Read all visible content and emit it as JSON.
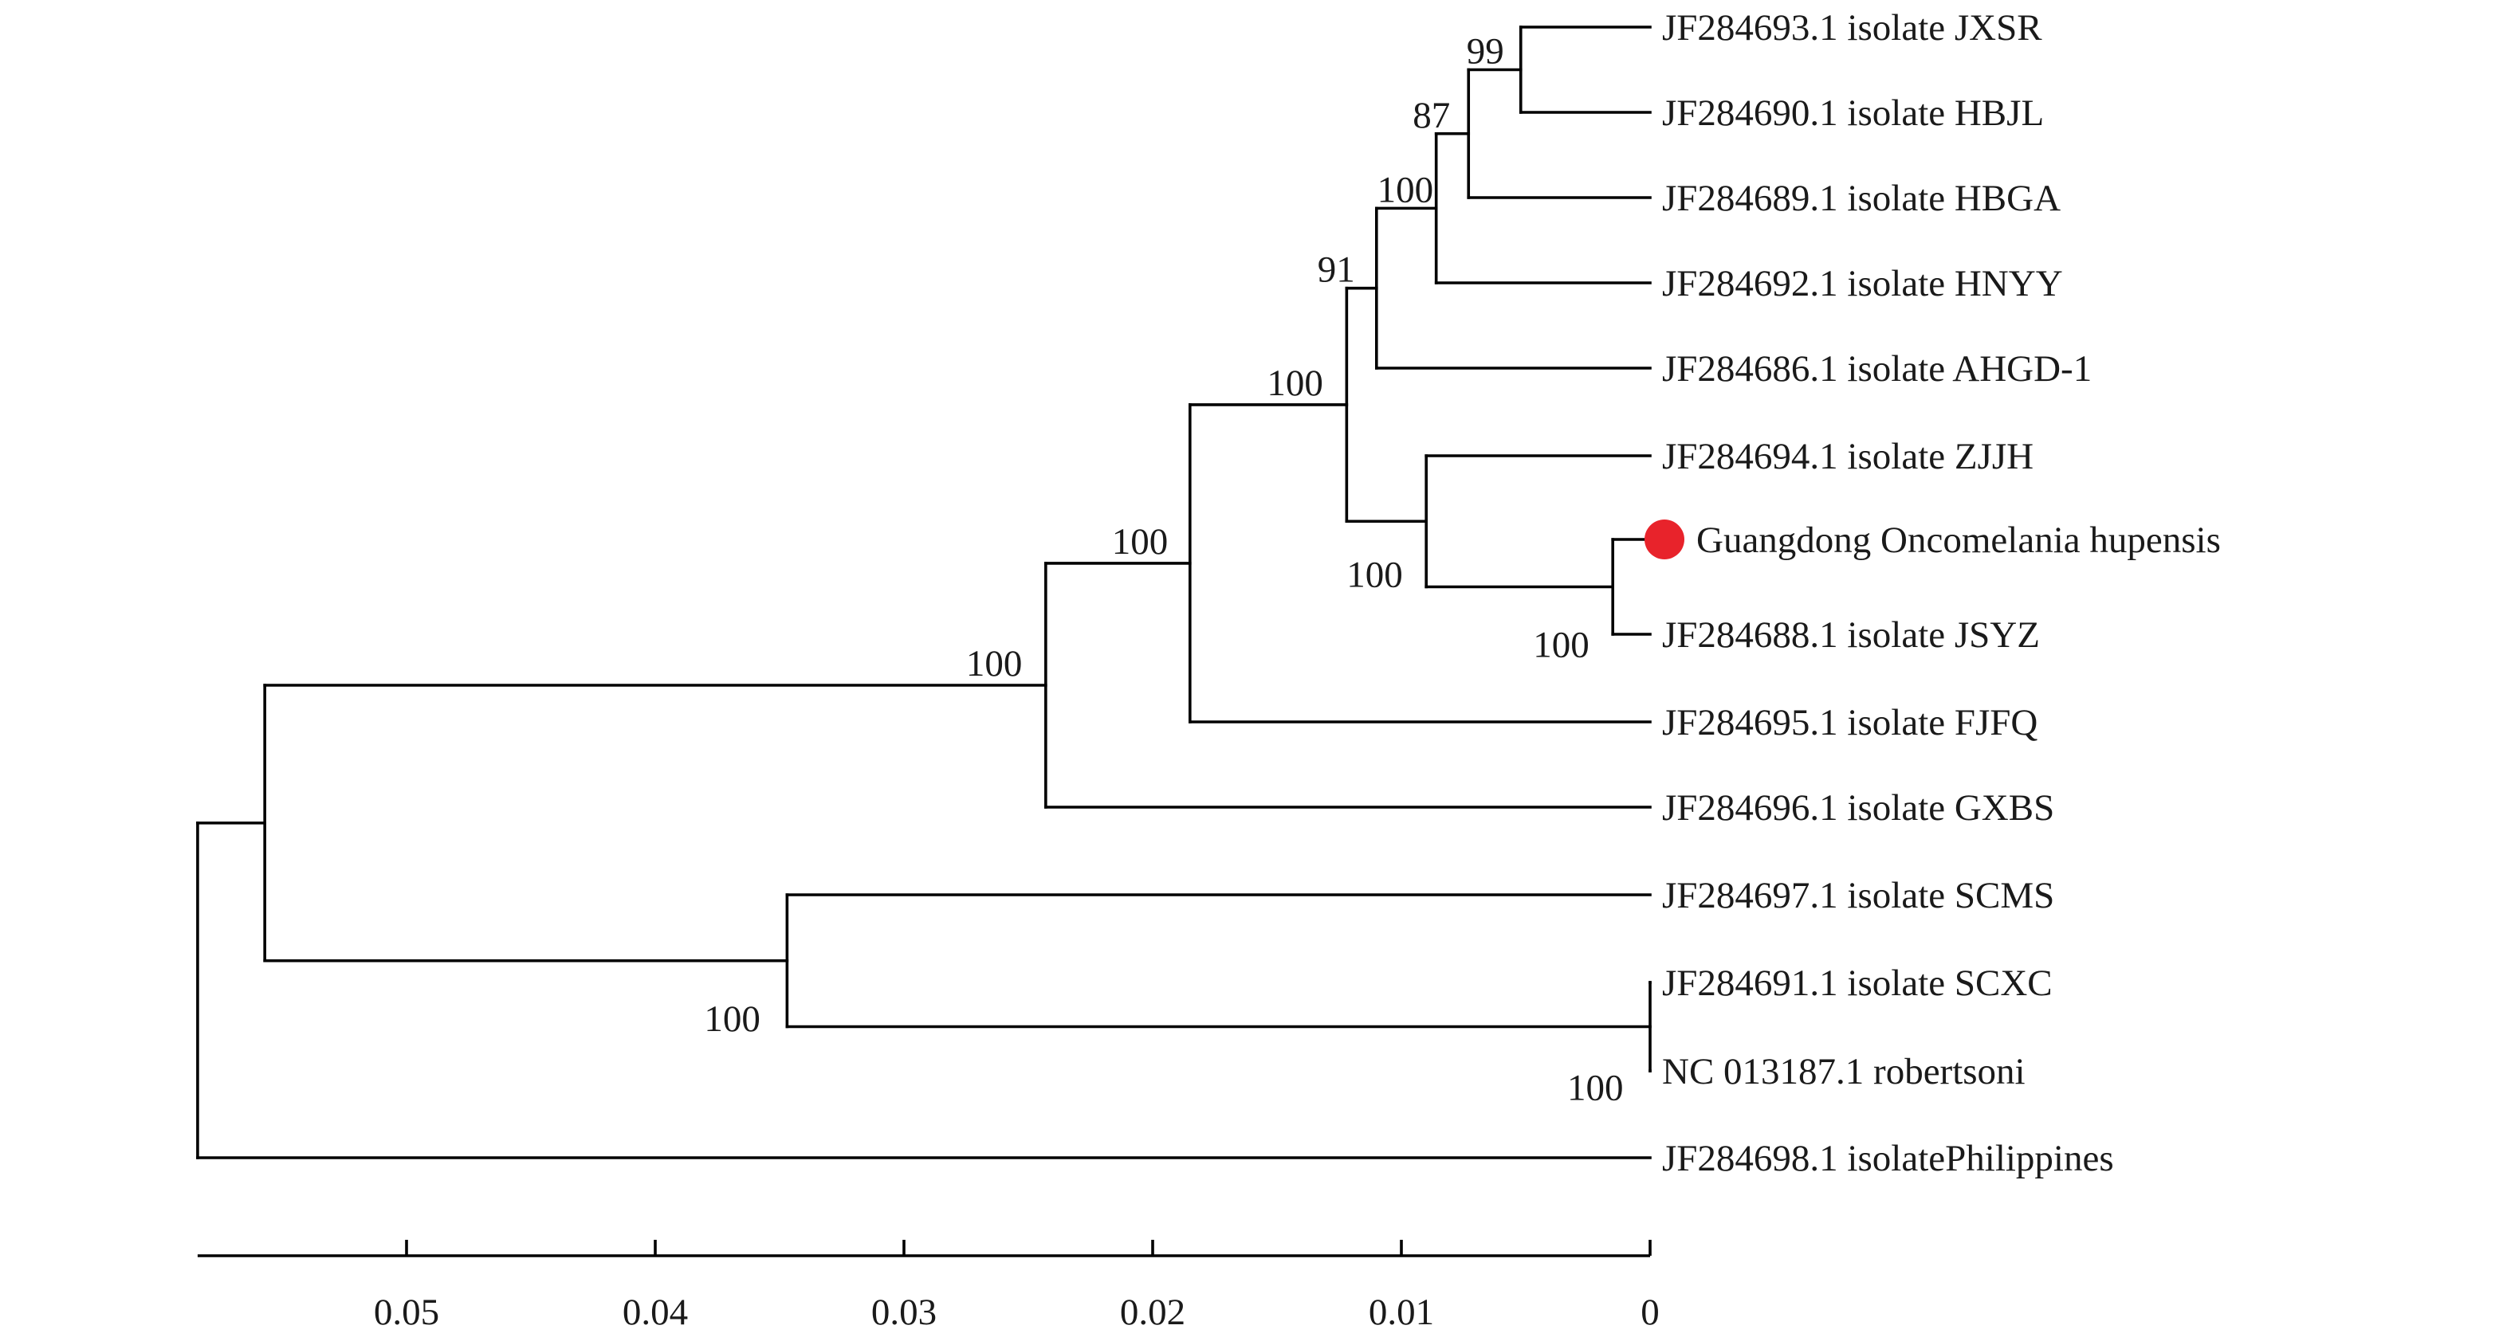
{
  "tree": {
    "highlight_color": "#e8232b",
    "leaves": [
      {
        "id": "L1",
        "label": "JF284693.1 isolate JXSR"
      },
      {
        "id": "L2",
        "label": "JF284690.1 isolate HBJL"
      },
      {
        "id": "L3",
        "label": "JF284689.1 isolate HBGA"
      },
      {
        "id": "L4",
        "label": "JF284692.1 isolate HNYY"
      },
      {
        "id": "L5",
        "label": "JF284686.1 isolate AHGD-1"
      },
      {
        "id": "L6",
        "label": "JF284694.1 isolate ZJJH"
      },
      {
        "id": "L7",
        "label": "Guangdong Oncomelania hupensis",
        "highlight": true
      },
      {
        "id": "L8",
        "label": "JF284688.1 isolate JSYZ"
      },
      {
        "id": "L9",
        "label": "JF284695.1 isolate FJFQ"
      },
      {
        "id": "L10",
        "label": "JF284696.1 isolate GXBS"
      },
      {
        "id": "L11",
        "label": "JF284697.1 isolate SCMS"
      },
      {
        "id": "L12",
        "label": "JF284691.1 isolate SCXC"
      },
      {
        "id": "L13",
        "label": "NC 013187.1 robertsoni"
      },
      {
        "id": "L14",
        "label": "JF284698.1 isolatePhilippines"
      }
    ],
    "nodes": [
      {
        "id": "N_root",
        "depth": 0.0584,
        "children": [
          "N_big",
          "L14"
        ]
      },
      {
        "id": "N_big",
        "depth": 0.0557,
        "children": [
          "N_A",
          "N_B"
        ]
      },
      {
        "id": "N_A",
        "depth": 0.0243,
        "bootstrap": "100",
        "children": [
          "N_C",
          "L10"
        ]
      },
      {
        "id": "N_C",
        "depth": 0.0185,
        "bootstrap": "100",
        "children": [
          "N_D",
          "L9"
        ]
      },
      {
        "id": "N_D",
        "depth": 0.0122,
        "bootstrap": "100",
        "children": [
          "N_E",
          "N_F"
        ]
      },
      {
        "id": "N_E",
        "depth": 0.011,
        "bootstrap": "91",
        "children": [
          "N_G",
          "L5"
        ]
      },
      {
        "id": "N_G",
        "depth": 0.0086,
        "bootstrap": "100",
        "children": [
          "N_H",
          "L4"
        ]
      },
      {
        "id": "N_H",
        "depth": 0.0073,
        "bootstrap": "87",
        "children": [
          "N_I",
          "L3"
        ]
      },
      {
        "id": "N_I",
        "depth": 0.0052,
        "bootstrap": "99",
        "children": [
          "L1",
          "L2"
        ]
      },
      {
        "id": "N_F",
        "depth": 0.009,
        "bootstrap": "100",
        "children": [
          "L6",
          "N_J"
        ]
      },
      {
        "id": "N_J",
        "depth": 0.0015,
        "bootstrap": "100",
        "children": [
          "L7",
          "L8"
        ]
      },
      {
        "id": "N_B",
        "depth": 0.0347,
        "bootstrap": "100",
        "children": [
          "L11",
          "N_K"
        ]
      },
      {
        "id": "N_K",
        "depth": 0.0,
        "bootstrap": "100",
        "children": [
          "L12",
          "L13"
        ]
      }
    ]
  },
  "scale_axis": {
    "ticks": [
      0.05,
      0.04,
      0.03,
      0.02,
      0.01,
      0
    ],
    "tick_labels": [
      "0.05",
      "0.04",
      "0.03",
      "0.02",
      "0.01",
      "0"
    ]
  }
}
